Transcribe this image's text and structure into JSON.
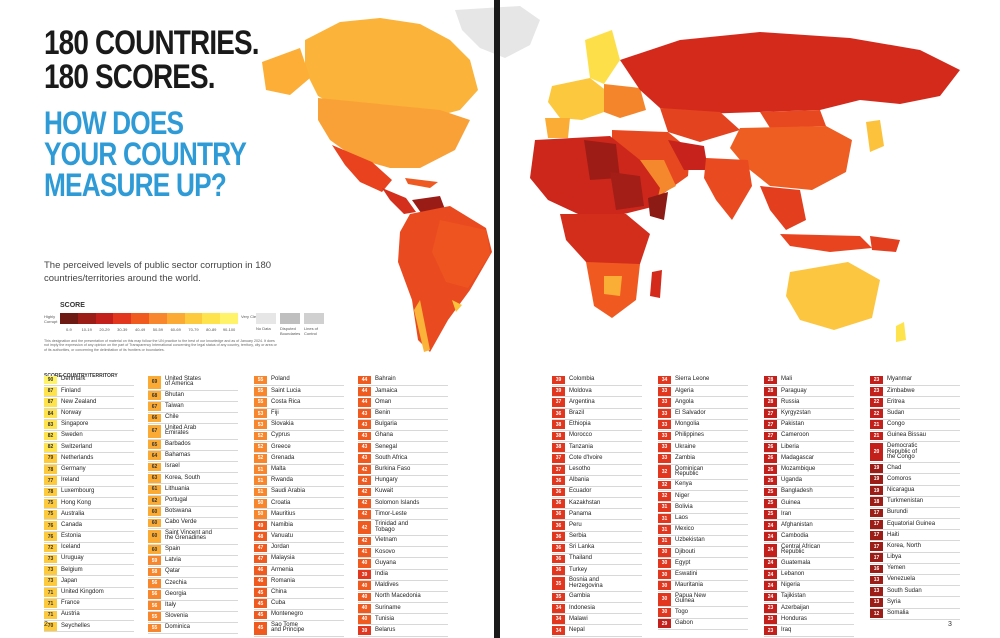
{
  "title_line1": "180 COUNTRIES.\n180 SCORES.",
  "title_line2": "HOW DOES\nYOUR COUNTRY\nMEASURE UP?",
  "intro": "The perceived levels of public sector corruption in 180 countries/territories around the world.",
  "legend": {
    "title": "SCORE",
    "left_label": "Highly Corrupt",
    "right_label": "Very Clean",
    "ranges": [
      "0-9",
      "10-19",
      "20-29",
      "30-39",
      "40-49",
      "50-59",
      "60-69",
      "70-79",
      "80-89",
      "90-100"
    ],
    "colors": [
      "#6e1a14",
      "#9c1c17",
      "#c4201b",
      "#e2361e",
      "#f05a1f",
      "#f7862c",
      "#fbab34",
      "#fdc93d",
      "#fee34c",
      "#fff36a"
    ],
    "no_data": "No Data",
    "disputed": "Disputed Boundaries",
    "control": "Lines of Control"
  },
  "fine_print": "This designation and the presentation of material on this map follow the UN practice to the best of our knowledge and as of January 2024. It does not imply the expression of any opinion on the part of Transparency International concerning the legal status of any country, territory, city or area or of its authorities, or concerning the delimitation of its frontiers or boundaries.",
  "table_header": "SCORE  COUNTRY/TERRITORY",
  "page_left": "2",
  "page_right": "3",
  "columns": [
    [
      [
        90,
        "Denmark"
      ],
      [
        87,
        "Finland"
      ],
      [
        87,
        "New Zealand"
      ],
      [
        84,
        "Norway"
      ],
      [
        83,
        "Singapore"
      ],
      [
        82,
        "Sweden"
      ],
      [
        82,
        "Switzerland"
      ],
      [
        79,
        "Netherlands"
      ],
      [
        78,
        "Germany"
      ],
      [
        77,
        "Ireland"
      ],
      [
        78,
        "Luxembourg"
      ],
      [
        75,
        "Hong Kong"
      ],
      [
        75,
        "Australia"
      ],
      [
        76,
        "Canada"
      ],
      [
        76,
        "Estonia"
      ],
      [
        72,
        "Iceland"
      ],
      [
        73,
        "Uruguay"
      ],
      [
        73,
        "Belgium"
      ],
      [
        73,
        "Japan"
      ],
      [
        71,
        "United Kingdom"
      ],
      [
        71,
        "France"
      ],
      [
        71,
        "Austria"
      ],
      [
        70,
        "Seychelles"
      ]
    ],
    [
      [
        69,
        "United States\nof America"
      ],
      [
        68,
        "Bhutan"
      ],
      [
        67,
        "Taiwan"
      ],
      [
        66,
        "Chile"
      ],
      [
        67,
        "United Arab\nEmirates"
      ],
      [
        65,
        "Barbados"
      ],
      [
        64,
        "Bahamas"
      ],
      [
        62,
        "Israel"
      ],
      [
        63,
        "Korea, South"
      ],
      [
        61,
        "Lithuania"
      ],
      [
        62,
        "Portugal"
      ],
      [
        60,
        "Botswana"
      ],
      [
        60,
        "Cabo Verde"
      ],
      [
        60,
        "Saint Vincent and\nthe Grenadines"
      ],
      [
        60,
        "Spain"
      ],
      [
        59,
        "Latvia"
      ],
      [
        58,
        "Qatar"
      ],
      [
        56,
        "Czechia"
      ],
      [
        56,
        "Georgia"
      ],
      [
        56,
        "Italy"
      ],
      [
        55,
        "Slovenia"
      ],
      [
        55,
        "Dominica"
      ]
    ],
    [
      [
        55,
        "Poland"
      ],
      [
        55,
        "Saint Lucia"
      ],
      [
        55,
        "Costa Rica"
      ],
      [
        53,
        "Fiji"
      ],
      [
        53,
        "Slovakia"
      ],
      [
        52,
        "Cyprus"
      ],
      [
        52,
        "Greece"
      ],
      [
        52,
        "Grenada"
      ],
      [
        51,
        "Malta"
      ],
      [
        51,
        "Rwanda"
      ],
      [
        51,
        "Saudi Arabia"
      ],
      [
        50,
        "Croatia"
      ],
      [
        50,
        "Mauritius"
      ],
      [
        49,
        "Namibia"
      ],
      [
        48,
        "Vanuatu"
      ],
      [
        47,
        "Jordan"
      ],
      [
        47,
        "Malaysia"
      ],
      [
        46,
        "Armenia"
      ],
      [
        46,
        "Romania"
      ],
      [
        45,
        "China"
      ],
      [
        45,
        "Cuba"
      ],
      [
        45,
        "Montenegro"
      ],
      [
        45,
        "Sao Tome\nand Principe"
      ]
    ],
    [
      [
        44,
        "Bahrain"
      ],
      [
        44,
        "Jamaica"
      ],
      [
        44,
        "Oman"
      ],
      [
        43,
        "Benin"
      ],
      [
        43,
        "Bulgaria"
      ],
      [
        43,
        "Ghana"
      ],
      [
        43,
        "Senegal"
      ],
      [
        43,
        "South Africa"
      ],
      [
        42,
        "Burkina Faso"
      ],
      [
        42,
        "Hungary"
      ],
      [
        42,
        "Kuwait"
      ],
      [
        42,
        "Solomon Islands"
      ],
      [
        42,
        "Timor-Leste"
      ],
      [
        42,
        "Trinidad and\nTobago"
      ],
      [
        42,
        "Vietnam"
      ],
      [
        41,
        "Kosovo"
      ],
      [
        40,
        "Guyana"
      ],
      [
        39,
        "India"
      ],
      [
        40,
        "Maldives"
      ],
      [
        40,
        "North Macedonia"
      ],
      [
        40,
        "Suriname"
      ],
      [
        40,
        "Tunisia"
      ],
      [
        39,
        "Belarus"
      ]
    ],
    [
      [
        39,
        "Colombia"
      ],
      [
        39,
        "Moldova"
      ],
      [
        37,
        "Argentina"
      ],
      [
        36,
        "Brazil"
      ],
      [
        38,
        "Ethiopia"
      ],
      [
        38,
        "Morocco"
      ],
      [
        38,
        "Tanzania"
      ],
      [
        37,
        "Cote d'Ivoire"
      ],
      [
        37,
        "Lesotho"
      ],
      [
        36,
        "Albania"
      ],
      [
        36,
        "Ecuador"
      ],
      [
        36,
        "Kazakhstan"
      ],
      [
        36,
        "Panama"
      ],
      [
        36,
        "Peru"
      ],
      [
        36,
        "Serbia"
      ],
      [
        36,
        "Sri Lanka"
      ],
      [
        36,
        "Thailand"
      ],
      [
        36,
        "Turkey"
      ],
      [
        35,
        "Bosnia and\nHerzegovina"
      ],
      [
        35,
        "Gambia"
      ],
      [
        34,
        "Indonesia"
      ],
      [
        34,
        "Malawi"
      ],
      [
        34,
        "Nepal"
      ]
    ],
    [
      [
        34,
        "Sierra Leone"
      ],
      [
        33,
        "Algeria"
      ],
      [
        33,
        "Angola"
      ],
      [
        33,
        "El Salvador"
      ],
      [
        33,
        "Mongolia"
      ],
      [
        33,
        "Philippines"
      ],
      [
        33,
        "Ukraine"
      ],
      [
        33,
        "Zambia"
      ],
      [
        32,
        "Dominican\nRepublic"
      ],
      [
        32,
        "Kenya"
      ],
      [
        32,
        "Niger"
      ],
      [
        31,
        "Bolivia"
      ],
      [
        31,
        "Laos"
      ],
      [
        31,
        "Mexico"
      ],
      [
        31,
        "Uzbekistan"
      ],
      [
        30,
        "Djibouti"
      ],
      [
        30,
        "Egypt"
      ],
      [
        30,
        "Eswatini"
      ],
      [
        30,
        "Mauritania"
      ],
      [
        30,
        "Papua New\nGuinea"
      ],
      [
        30,
        "Togo"
      ],
      [
        29,
        "Gabon"
      ]
    ],
    [
      [
        28,
        "Mali"
      ],
      [
        28,
        "Paraguay"
      ],
      [
        28,
        "Russia"
      ],
      [
        27,
        "Kyrgyzstan"
      ],
      [
        27,
        "Pakistan"
      ],
      [
        27,
        "Cameroon"
      ],
      [
        26,
        "Liberia"
      ],
      [
        26,
        "Madagascar"
      ],
      [
        26,
        "Mozambique"
      ],
      [
        26,
        "Uganda"
      ],
      [
        25,
        "Bangladesh"
      ],
      [
        25,
        "Guinea"
      ],
      [
        25,
        "Iran"
      ],
      [
        24,
        "Afghanistan"
      ],
      [
        24,
        "Cambodia"
      ],
      [
        24,
        "Central African\nRepublic"
      ],
      [
        24,
        "Guatemala"
      ],
      [
        24,
        "Lebanon"
      ],
      [
        24,
        "Nigeria"
      ],
      [
        24,
        "Tajikistan"
      ],
      [
        23,
        "Azerbaijan"
      ],
      [
        23,
        "Honduras"
      ],
      [
        23,
        "Iraq"
      ]
    ],
    [
      [
        23,
        "Myanmar"
      ],
      [
        23,
        "Zimbabwe"
      ],
      [
        22,
        "Eritrea"
      ],
      [
        22,
        "Sudan"
      ],
      [
        21,
        "Congo"
      ],
      [
        21,
        "Guinea Bissau"
      ],
      [
        20,
        "Democratic\nRepublic of\nthe Congo"
      ],
      [
        19,
        "Chad"
      ],
      [
        19,
        "Comoros"
      ],
      [
        19,
        "Nicaragua"
      ],
      [
        18,
        "Turkmenistan"
      ],
      [
        17,
        "Burundi"
      ],
      [
        17,
        "Equatorial Guinea"
      ],
      [
        17,
        "Haiti"
      ],
      [
        17,
        "Korea, North"
      ],
      [
        17,
        "Libya"
      ],
      [
        16,
        "Yemen"
      ],
      [
        13,
        "Venezuela"
      ],
      [
        13,
        "South Sudan"
      ],
      [
        13,
        "Syria"
      ],
      [
        12,
        "Somalia"
      ]
    ]
  ]
}
